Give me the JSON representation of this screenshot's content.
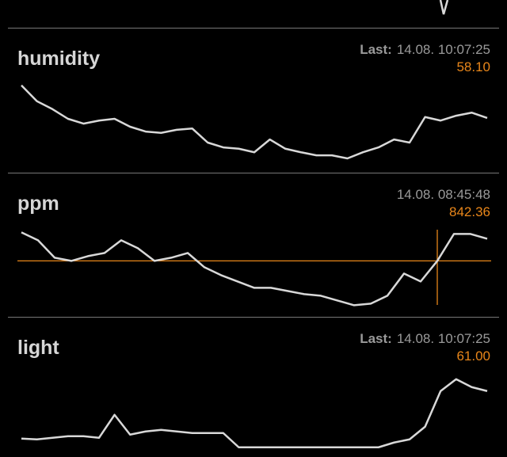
{
  "panels": [
    {
      "title": "humidity",
      "last_label": "Last:",
      "time": "14.08. 10:07:25",
      "value": "58.10",
      "chart": {
        "type": "line",
        "color": "#d8d8d8",
        "ylim": [
          48,
          66
        ],
        "values": [
          65.5,
          61.9,
          60.1,
          57.9,
          56.8,
          57.5,
          57.9,
          56.1,
          55.0,
          54.7,
          55.4,
          55.7,
          52.5,
          51.4,
          51.1,
          50.3,
          53.2,
          51.1,
          50.3,
          49.6,
          49.6,
          48.9,
          50.3,
          51.4,
          53.2,
          52.5,
          58.3,
          57.5,
          58.6,
          59.3,
          58.1
        ]
      }
    },
    {
      "title": "ppm",
      "time": "14.08. 08:45:48",
      "value": "842.36",
      "chart": {
        "type": "line",
        "color": "#d8d8d8",
        "cursor_color": "#e8861a",
        "ylim": [
          600,
          1000
        ],
        "values": [
          986.4,
          946.4,
          858.4,
          842.4,
          866.4,
          882.4,
          946.4,
          906.4,
          842.4,
          858.4,
          882.4,
          810.4,
          770.4,
          738.4,
          706.4,
          706.4,
          690.4,
          674.4,
          666.4,
          642.4,
          618.4,
          626.4,
          666.4,
          778.4,
          738.4,
          842.36,
          978.4,
          978.4,
          954.4
        ]
      }
    },
    {
      "title": "light",
      "last_label": "Last:",
      "time": "14.08. 10:07:25",
      "value": "61.00",
      "chart": {
        "type": "line",
        "color": "#d8d8d8",
        "ylim": [
          0,
          80
        ],
        "values": [
          13,
          12.2,
          13.8,
          15.4,
          15.4,
          13.8,
          37,
          17,
          20.2,
          21.8,
          20.2,
          18.6,
          18.6,
          18.6,
          4.2,
          4.2,
          4.2,
          4.2,
          4.2,
          4.2,
          4.2,
          4.2,
          4.2,
          4.2,
          9,
          12.2,
          25,
          61,
          73,
          65,
          61
        ]
      }
    }
  ]
}
